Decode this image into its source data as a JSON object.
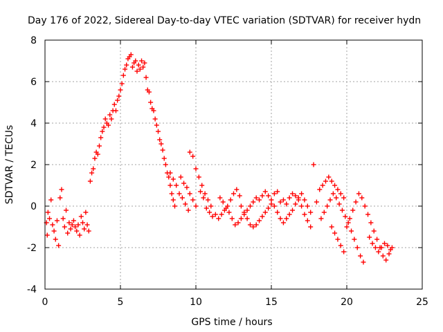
{
  "chart_data": {
    "type": "scatter",
    "title": "Day 176 of 2022, Sidereal Day-to-day VTEC variation (SDTVAR) for receiver hydn",
    "xlabel": "GPS time / hours",
    "ylabel": "SDTVAR / TECUs",
    "xlim": [
      0,
      25
    ],
    "ylim": [
      -4,
      8
    ],
    "xticks": [
      0,
      5,
      10,
      15,
      20,
      25
    ],
    "yticks": [
      -4,
      -2,
      0,
      2,
      4,
      6,
      8
    ],
    "grid": true,
    "marker": "+",
    "series": [
      {
        "name": "SDTVAR",
        "color": "#ff0000",
        "points": [
          [
            0.1,
            -0.8
          ],
          [
            0.15,
            -1.4
          ],
          [
            0.2,
            -0.3
          ],
          [
            0.3,
            -0.6
          ],
          [
            0.4,
            0.3
          ],
          [
            0.5,
            -0.9
          ],
          [
            0.6,
            -1.2
          ],
          [
            0.7,
            -1.6
          ],
          [
            0.8,
            -0.7
          ],
          [
            0.9,
            -1.9
          ],
          [
            1.0,
            0.4
          ],
          [
            1.1,
            0.8
          ],
          [
            1.2,
            -0.6
          ],
          [
            1.3,
            -1.0
          ],
          [
            1.4,
            -0.2
          ],
          [
            1.5,
            -1.3
          ],
          [
            1.6,
            -0.8
          ],
          [
            1.7,
            -1.1
          ],
          [
            1.8,
            -0.9
          ],
          [
            1.9,
            -0.7
          ],
          [
            2.0,
            -1.0
          ],
          [
            2.1,
            -1.2
          ],
          [
            2.2,
            -0.9
          ],
          [
            2.3,
            -1.4
          ],
          [
            2.4,
            -0.5
          ],
          [
            2.5,
            -0.8
          ],
          [
            2.6,
            -1.1
          ],
          [
            2.7,
            -0.3
          ],
          [
            2.8,
            -0.9
          ],
          [
            2.9,
            -1.2
          ],
          [
            3.0,
            1.2
          ],
          [
            3.1,
            1.6
          ],
          [
            3.2,
            1.8
          ],
          [
            3.3,
            2.3
          ],
          [
            3.4,
            2.6
          ],
          [
            3.5,
            2.5
          ],
          [
            3.6,
            2.9
          ],
          [
            3.7,
            3.3
          ],
          [
            3.8,
            3.6
          ],
          [
            3.9,
            3.8
          ],
          [
            4.0,
            4.2
          ],
          [
            4.1,
            4.0
          ],
          [
            4.2,
            3.9
          ],
          [
            4.3,
            4.4
          ],
          [
            4.4,
            4.2
          ],
          [
            4.5,
            4.6
          ],
          [
            4.6,
            4.9
          ],
          [
            4.7,
            4.6
          ],
          [
            4.8,
            5.1
          ],
          [
            4.9,
            5.3
          ],
          [
            5.0,
            5.6
          ],
          [
            5.1,
            5.9
          ],
          [
            5.2,
            6.3
          ],
          [
            5.3,
            6.6
          ],
          [
            5.4,
            6.8
          ],
          [
            5.5,
            7.1
          ],
          [
            5.6,
            7.2
          ],
          [
            5.7,
            7.3
          ],
          [
            5.8,
            6.7
          ],
          [
            5.9,
            6.9
          ],
          [
            6.0,
            7.0
          ],
          [
            6.1,
            6.5
          ],
          [
            6.2,
            6.8
          ],
          [
            6.3,
            6.6
          ],
          [
            6.4,
            7.0
          ],
          [
            6.5,
            6.7
          ],
          [
            6.6,
            6.9
          ],
          [
            6.7,
            6.2
          ],
          [
            6.8,
            5.6
          ],
          [
            6.9,
            5.5
          ],
          [
            7.0,
            5.0
          ],
          [
            7.1,
            4.7
          ],
          [
            7.2,
            4.6
          ],
          [
            7.3,
            4.2
          ],
          [
            7.4,
            3.9
          ],
          [
            7.5,
            3.6
          ],
          [
            7.6,
            3.2
          ],
          [
            7.7,
            3.0
          ],
          [
            7.8,
            2.7
          ],
          [
            7.9,
            2.3
          ],
          [
            8.0,
            2.0
          ],
          [
            8.1,
            1.6
          ],
          [
            8.2,
            1.4
          ],
          [
            8.3,
            1.0
          ],
          [
            8.4,
            0.6
          ],
          [
            8.5,
            0.3
          ],
          [
            8.6,
            0.0
          ],
          [
            8.3,
            1.6
          ],
          [
            8.5,
            1.3
          ],
          [
            8.7,
            1.0
          ],
          [
            8.9,
            0.6
          ],
          [
            9.1,
            0.4
          ],
          [
            9.3,
            0.1
          ],
          [
            9.5,
            -0.2
          ],
          [
            9.0,
            1.4
          ],
          [
            9.2,
            1.1
          ],
          [
            9.4,
            0.9
          ],
          [
            9.6,
            0.6
          ],
          [
            9.8,
            0.3
          ],
          [
            10.0,
            0.0
          ],
          [
            9.6,
            2.6
          ],
          [
            9.8,
            2.4
          ],
          [
            10.0,
            1.8
          ],
          [
            10.2,
            1.4
          ],
          [
            10.4,
            1.0
          ],
          [
            10.6,
            0.6
          ],
          [
            10.8,
            0.3
          ],
          [
            11.0,
            0.0
          ],
          [
            10.3,
            0.7
          ],
          [
            10.5,
            0.4
          ],
          [
            10.7,
            -0.1
          ],
          [
            10.9,
            -0.3
          ],
          [
            11.1,
            -0.5
          ],
          [
            11.3,
            -0.4
          ],
          [
            11.5,
            -0.6
          ],
          [
            11.7,
            -0.4
          ],
          [
            11.9,
            -0.2
          ],
          [
            12.1,
            0.0
          ],
          [
            12.3,
            0.3
          ],
          [
            12.5,
            0.6
          ],
          [
            12.7,
            0.8
          ],
          [
            12.9,
            0.5
          ],
          [
            11.6,
            0.4
          ],
          [
            11.8,
            0.2
          ],
          [
            12.0,
            -0.1
          ],
          [
            12.2,
            -0.3
          ],
          [
            12.4,
            -0.6
          ],
          [
            12.6,
            -0.9
          ],
          [
            12.8,
            -0.8
          ],
          [
            13.0,
            -0.6
          ],
          [
            13.2,
            -0.4
          ],
          [
            13.4,
            -0.2
          ],
          [
            13.6,
            0.0
          ],
          [
            13.8,
            0.2
          ],
          [
            14.0,
            0.4
          ],
          [
            14.2,
            0.3
          ],
          [
            14.4,
            0.5
          ],
          [
            14.6,
            0.7
          ],
          [
            14.8,
            0.5
          ],
          [
            15.0,
            0.3
          ],
          [
            15.2,
            0.6
          ],
          [
            15.4,
            0.7
          ],
          [
            13.0,
            0.0
          ],
          [
            13.2,
            -0.3
          ],
          [
            13.4,
            -0.6
          ],
          [
            13.6,
            -0.9
          ],
          [
            13.8,
            -1.0
          ],
          [
            14.0,
            -0.9
          ],
          [
            14.2,
            -0.7
          ],
          [
            14.4,
            -0.5
          ],
          [
            14.6,
            -0.3
          ],
          [
            14.8,
            -0.1
          ],
          [
            15.0,
            0.1
          ],
          [
            15.2,
            0.0
          ],
          [
            15.4,
            -0.3
          ],
          [
            15.6,
            -0.6
          ],
          [
            15.8,
            -0.8
          ],
          [
            16.0,
            -0.6
          ],
          [
            16.2,
            -0.4
          ],
          [
            16.4,
            -0.2
          ],
          [
            16.6,
            0.1
          ],
          [
            16.8,
            0.4
          ],
          [
            17.0,
            0.6
          ],
          [
            17.2,
            0.3
          ],
          [
            17.4,
            0.0
          ],
          [
            17.6,
            -0.3
          ],
          [
            15.6,
            0.2
          ],
          [
            15.8,
            0.3
          ],
          [
            16.0,
            0.1
          ],
          [
            16.2,
            0.4
          ],
          [
            16.4,
            0.6
          ],
          [
            16.6,
            0.5
          ],
          [
            16.8,
            0.3
          ],
          [
            17.0,
            0.0
          ],
          [
            17.2,
            -0.4
          ],
          [
            17.4,
            -0.7
          ],
          [
            17.6,
            -1.0
          ],
          [
            17.8,
            2.0
          ],
          [
            18.0,
            0.2
          ],
          [
            18.2,
            0.8
          ],
          [
            18.4,
            1.0
          ],
          [
            18.6,
            1.2
          ],
          [
            18.8,
            1.4
          ],
          [
            19.0,
            1.2
          ],
          [
            19.2,
            1.0
          ],
          [
            19.4,
            0.8
          ],
          [
            19.6,
            0.6
          ],
          [
            19.8,
            0.4
          ],
          [
            18.3,
            -0.6
          ],
          [
            18.5,
            -0.3
          ],
          [
            18.7,
            0.0
          ],
          [
            18.9,
            0.3
          ],
          [
            19.1,
            0.6
          ],
          [
            19.3,
            0.4
          ],
          [
            19.5,
            0.1
          ],
          [
            19.7,
            -0.2
          ],
          [
            19.9,
            -0.5
          ],
          [
            20.1,
            -0.8
          ],
          [
            20.3,
            -1.2
          ],
          [
            20.5,
            -1.6
          ],
          [
            20.7,
            -2.0
          ],
          [
            20.9,
            -2.4
          ],
          [
            21.1,
            -2.7
          ],
          [
            19.0,
            -1.0
          ],
          [
            19.2,
            -1.3
          ],
          [
            19.4,
            -1.6
          ],
          [
            19.6,
            -1.9
          ],
          [
            19.8,
            -2.2
          ],
          [
            20.0,
            -1.0
          ],
          [
            20.2,
            -0.6
          ],
          [
            20.4,
            -0.2
          ],
          [
            20.6,
            0.2
          ],
          [
            20.8,
            0.6
          ],
          [
            21.0,
            0.4
          ],
          [
            21.2,
            0.0
          ],
          [
            21.4,
            -0.4
          ],
          [
            21.6,
            -0.8
          ],
          [
            21.8,
            -1.2
          ],
          [
            22.0,
            -1.6
          ],
          [
            22.2,
            -2.0
          ],
          [
            22.4,
            -2.4
          ],
          [
            22.6,
            -2.6
          ],
          [
            22.8,
            -2.3
          ],
          [
            23.0,
            -2.0
          ],
          [
            21.5,
            -1.5
          ],
          [
            21.7,
            -1.8
          ],
          [
            21.9,
            -2.0
          ],
          [
            22.1,
            -2.2
          ],
          [
            22.3,
            -2.0
          ],
          [
            22.5,
            -1.8
          ],
          [
            22.7,
            -1.9
          ],
          [
            22.9,
            -2.1
          ]
        ]
      }
    ]
  }
}
